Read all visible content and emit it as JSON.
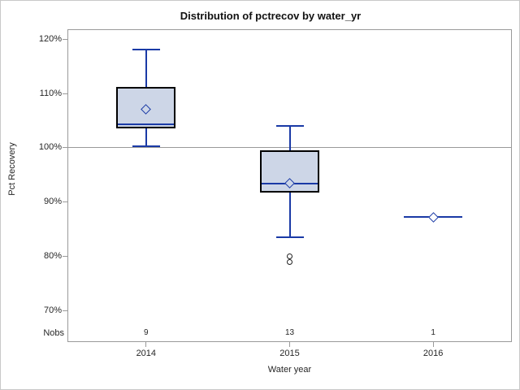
{
  "chart_data": {
    "type": "boxplot",
    "title": "Distribution of pctrecov by water_yr",
    "xlabel": "Water year",
    "ylabel": "Pct Recovery",
    "nobs_label": "Nobs",
    "ylim": [
      64.3,
      121.8
    ],
    "reference_line": 100,
    "grid": false,
    "yticks": [
      {
        "label": "120%",
        "value": 120
      },
      {
        "label": "110%",
        "value": 110
      },
      {
        "label": "100%",
        "value": 100
      },
      {
        "label": "90%",
        "value": 90
      },
      {
        "label": "80%",
        "value": 80
      },
      {
        "label": "70%",
        "value": 70
      }
    ],
    "groups": [
      {
        "label": "2014",
        "nobs": "9",
        "low": 100.3,
        "q1": 103.6,
        "median": 104.4,
        "q3": 111.2,
        "high": 118.1,
        "mean": 107.1,
        "outliers": [],
        "single": false
      },
      {
        "label": "2015",
        "nobs": "13",
        "low": 83.5,
        "q1": 91.8,
        "median": 93.4,
        "q3": 99.6,
        "high": 104.0,
        "mean": 93.5,
        "outliers": [
          80.1,
          79.0
        ],
        "single": false
      },
      {
        "label": "2016",
        "nobs": "1",
        "low": 87.3,
        "q1": null,
        "median": 87.3,
        "q3": null,
        "high": 87.3,
        "mean": 87.3,
        "outliers": [],
        "single": true
      }
    ],
    "colors": {
      "box_fill": "#cdd6e7",
      "box_border": "#000000",
      "line_blue": "#1a3aa6",
      "frame_gray": "#9a9a9a",
      "outlier_stroke": "#222222",
      "text": "#262626"
    }
  }
}
